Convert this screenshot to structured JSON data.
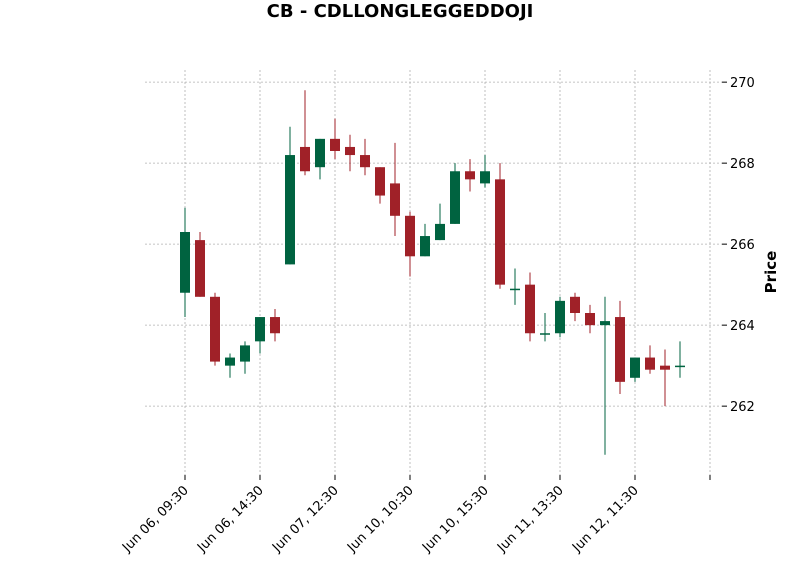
{
  "chart_data": {
    "type": "candlestick",
    "title": "CB - CDLLONGLEGGEDDOJI",
    "ylabel": "Price",
    "ylim": [
      260.3,
      270.3
    ],
    "yticks": [
      262,
      264,
      266,
      268,
      270
    ],
    "grid": true,
    "y_axis_side": "right",
    "colors": {
      "up": "#006340",
      "down": "#a02128",
      "grid": "#b0b0b0"
    },
    "x_tick_labels": [
      {
        "index": 0,
        "label": "Jun 06, 09:30"
      },
      {
        "index": 5,
        "label": "Jun 06, 14:30"
      },
      {
        "index": 10,
        "label": "Jun 07, 12:30"
      },
      {
        "index": 15,
        "label": "Jun 10, 10:30"
      },
      {
        "index": 20,
        "label": "Jun 10, 15:30"
      },
      {
        "index": 25,
        "label": "Jun 11, 13:30"
      },
      {
        "index": 30,
        "label": "Jun 12, 11:30"
      },
      {
        "index": 35,
        "label": ""
      }
    ],
    "candles": [
      {
        "o": 264.8,
        "h": 266.9,
        "l": 264.2,
        "c": 266.3
      },
      {
        "o": 266.1,
        "h": 266.3,
        "l": 264.7,
        "c": 264.7
      },
      {
        "o": 264.7,
        "h": 264.8,
        "l": 263.0,
        "c": 263.1
      },
      {
        "o": 263.0,
        "h": 263.3,
        "l": 262.7,
        "c": 263.2
      },
      {
        "o": 263.1,
        "h": 263.6,
        "l": 262.8,
        "c": 263.5
      },
      {
        "o": 263.6,
        "h": 264.2,
        "l": 263.3,
        "c": 264.2
      },
      {
        "o": 264.2,
        "h": 264.4,
        "l": 263.6,
        "c": 263.8
      },
      {
        "o": 265.5,
        "h": 268.9,
        "l": 265.5,
        "c": 268.2
      },
      {
        "o": 268.4,
        "h": 269.8,
        "l": 267.7,
        "c": 267.8
      },
      {
        "o": 267.9,
        "h": 268.6,
        "l": 267.6,
        "c": 268.6
      },
      {
        "o": 268.6,
        "h": 269.1,
        "l": 268.1,
        "c": 268.3
      },
      {
        "o": 268.4,
        "h": 268.7,
        "l": 267.8,
        "c": 268.2
      },
      {
        "o": 268.2,
        "h": 268.6,
        "l": 267.7,
        "c": 267.9
      },
      {
        "o": 267.9,
        "h": 267.9,
        "l": 267.0,
        "c": 267.2
      },
      {
        "o": 267.5,
        "h": 268.5,
        "l": 266.2,
        "c": 266.7
      },
      {
        "o": 266.7,
        "h": 266.8,
        "l": 265.2,
        "c": 265.7
      },
      {
        "o": 265.7,
        "h": 266.5,
        "l": 265.7,
        "c": 266.2
      },
      {
        "o": 266.1,
        "h": 267.0,
        "l": 266.1,
        "c": 266.5
      },
      {
        "o": 266.5,
        "h": 268.0,
        "l": 266.5,
        "c": 267.8
      },
      {
        "o": 267.8,
        "h": 268.1,
        "l": 267.3,
        "c": 267.6
      },
      {
        "o": 267.5,
        "h": 268.2,
        "l": 267.4,
        "c": 267.8
      },
      {
        "o": 267.6,
        "h": 268.0,
        "l": 264.9,
        "c": 265.0
      },
      {
        "o": 264.9,
        "h": 265.4,
        "l": 264.5,
        "c": 264.9
      },
      {
        "o": 265.0,
        "h": 265.3,
        "l": 263.6,
        "c": 263.8
      },
      {
        "o": 263.8,
        "h": 264.3,
        "l": 263.6,
        "c": 263.8
      },
      {
        "o": 263.8,
        "h": 264.7,
        "l": 263.7,
        "c": 264.6
      },
      {
        "o": 264.7,
        "h": 264.8,
        "l": 264.1,
        "c": 264.3
      },
      {
        "o": 264.3,
        "h": 264.5,
        "l": 263.8,
        "c": 264.0
      },
      {
        "o": 264.0,
        "h": 264.7,
        "l": 260.8,
        "c": 264.1
      },
      {
        "o": 264.2,
        "h": 264.6,
        "l": 262.3,
        "c": 262.6
      },
      {
        "o": 262.7,
        "h": 263.2,
        "l": 262.6,
        "c": 263.2
      },
      {
        "o": 263.2,
        "h": 263.5,
        "l": 262.8,
        "c": 262.9
      },
      {
        "o": 263.0,
        "h": 263.4,
        "l": 262.0,
        "c": 262.9
      },
      {
        "o": 263.0,
        "h": 263.6,
        "l": 262.7,
        "c": 263.0
      }
    ]
  }
}
